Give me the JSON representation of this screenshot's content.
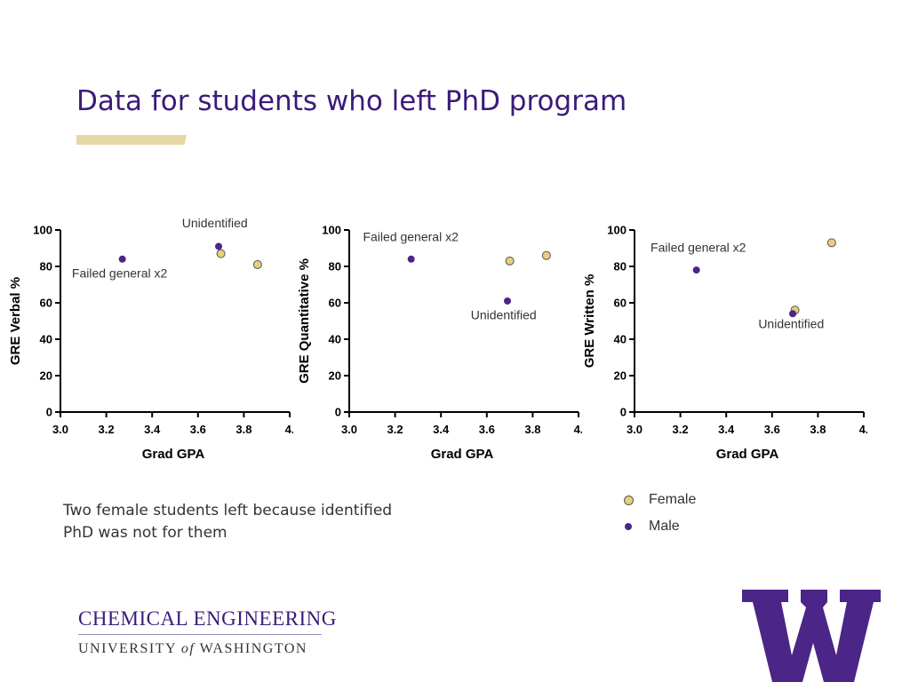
{
  "slide": {
    "title": "Data for students who left PhD program",
    "note_lines": [
      "Two female students left because identified",
      "PhD was not for them"
    ],
    "footer": {
      "department": "CHEMICAL ENGINEERING",
      "university_pre": "UNIVERSITY",
      "university_of": "of",
      "university_post": "WASHINGTON",
      "logo_letter": "W"
    },
    "legend": [
      {
        "name": "Female",
        "color": "#e9cf7d"
      },
      {
        "name": "Male",
        "color": "#4b2587"
      }
    ]
  },
  "chart_data": [
    {
      "type": "scatter",
      "xlabel": "Grad GPA",
      "ylabel": "GRE Verbal %",
      "xlim": [
        3.0,
        4.0
      ],
      "ylim": [
        0,
        100
      ],
      "xticks": [
        "3.0",
        "3.2",
        "3.4",
        "3.6",
        "3.8",
        "4."
      ],
      "yticks": [
        "0",
        "20",
        "40",
        "60",
        "80",
        "100"
      ],
      "series": [
        {
          "name": "Female",
          "points": [
            [
              3.7,
              87
            ],
            [
              3.86,
              81
            ]
          ]
        },
        {
          "name": "Male",
          "points": [
            [
              3.27,
              84
            ],
            [
              3.69,
              91
            ]
          ]
        }
      ],
      "annotations": [
        {
          "text": "Unidentified",
          "x": 3.53,
          "y": 101.5
        },
        {
          "text": "Failed general x2",
          "x": 3.05,
          "y": 74
        }
      ]
    },
    {
      "type": "scatter",
      "xlabel": "Grad GPA",
      "ylabel": "GRE Quantitative %",
      "xlim": [
        3.0,
        4.0
      ],
      "ylim": [
        0,
        100
      ],
      "xticks": [
        "3.0",
        "3.2",
        "3.4",
        "3.6",
        "3.8",
        "4."
      ],
      "yticks": [
        "0",
        "20",
        "40",
        "60",
        "80",
        "100"
      ],
      "series": [
        {
          "name": "Female",
          "points": [
            [
              3.7,
              83
            ],
            [
              3.86,
              86
            ]
          ]
        },
        {
          "name": "Male",
          "points": [
            [
              3.27,
              84
            ],
            [
              3.69,
              61
            ]
          ]
        }
      ],
      "annotations": [
        {
          "text": "Failed general x2",
          "x": 3.06,
          "y": 94
        },
        {
          "text": "Unidentified",
          "x": 3.53,
          "y": 51
        }
      ]
    },
    {
      "type": "scatter",
      "xlabel": "Grad GPA",
      "ylabel": "GRE Written %",
      "xlim": [
        3.0,
        4.0
      ],
      "ylim": [
        0,
        100
      ],
      "xticks": [
        "3.0",
        "3.2",
        "3.4",
        "3.6",
        "3.8",
        "4."
      ],
      "yticks": [
        "0",
        "20",
        "40",
        "60",
        "80",
        "100"
      ],
      "series": [
        {
          "name": "Female",
          "points": [
            [
              3.7,
              56
            ],
            [
              3.86,
              93
            ]
          ]
        },
        {
          "name": "Male",
          "points": [
            [
              3.27,
              78
            ],
            [
              3.69,
              54
            ]
          ]
        }
      ],
      "annotations": [
        {
          "text": "Failed general x2",
          "x": 3.07,
          "y": 88
        },
        {
          "text": "Unidentified",
          "x": 3.54,
          "y": 46
        }
      ]
    }
  ]
}
